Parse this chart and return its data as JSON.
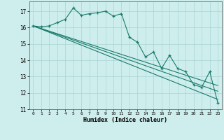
{
  "xlabel": "Humidex (Indice chaleur)",
  "bg_color": "#ceeeed",
  "grid_color": "#aad4d4",
  "line_color": "#1a7a6a",
  "xlim": [
    -0.5,
    23.5
  ],
  "ylim": [
    11,
    17.6
  ],
  "yticks": [
    11,
    12,
    13,
    14,
    15,
    16,
    17
  ],
  "xticks": [
    0,
    1,
    2,
    3,
    4,
    5,
    6,
    7,
    8,
    9,
    10,
    11,
    12,
    13,
    14,
    15,
    16,
    17,
    18,
    19,
    20,
    21,
    22,
    23
  ],
  "series1_x": [
    0,
    1,
    2,
    3,
    4,
    5,
    6,
    7,
    8,
    9,
    10,
    11,
    12,
    13,
    14,
    15,
    16,
    17,
    18,
    19,
    20,
    21,
    22,
    23
  ],
  "series1_y": [
    16.1,
    16.05,
    16.1,
    16.3,
    16.5,
    17.2,
    16.75,
    16.85,
    16.9,
    17.0,
    16.7,
    16.85,
    15.4,
    15.1,
    14.2,
    14.5,
    13.5,
    14.3,
    13.5,
    13.3,
    12.5,
    12.35,
    13.3,
    11.4
  ],
  "series2_x": [
    0,
    23
  ],
  "series2_y": [
    16.1,
    12.1
  ],
  "series3_x": [
    0,
    23
  ],
  "series3_y": [
    16.1,
    11.6
  ],
  "series4_x": [
    0,
    23
  ],
  "series4_y": [
    16.1,
    12.45
  ]
}
